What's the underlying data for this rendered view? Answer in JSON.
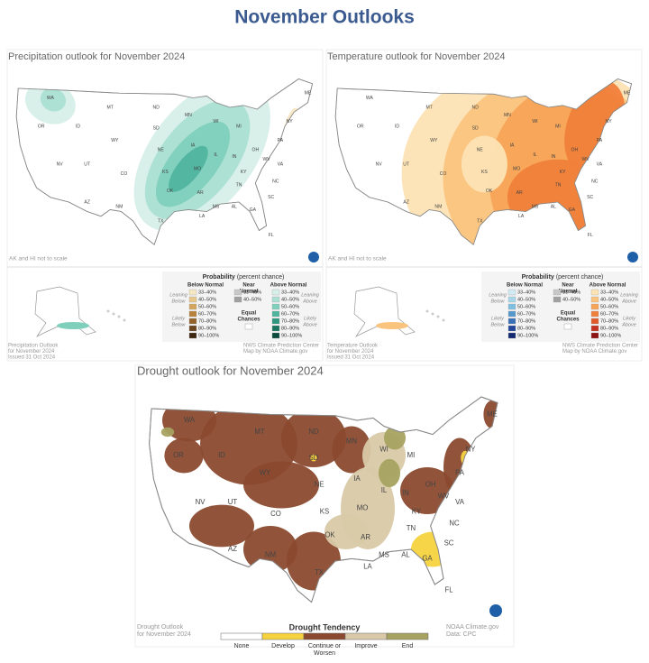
{
  "title": "November Outlooks",
  "state_labels": [
    "WA",
    "OR",
    "ID",
    "MT",
    "WY",
    "NV",
    "UT",
    "CO",
    "AZ",
    "NM",
    "ND",
    "SD",
    "NE",
    "KS",
    "OK",
    "TX",
    "MN",
    "IA",
    "MO",
    "AR",
    "LA",
    "WI",
    "IL",
    "MI",
    "IN",
    "OH",
    "KY",
    "TN",
    "MS",
    "AL",
    "GA",
    "FL",
    "SC",
    "NC",
    "VA",
    "WV",
    "PA",
    "NY",
    "ME"
  ],
  "precipitation": {
    "title": "Precipitation outlook for November 2024",
    "scale_note": "AK and HI not to scale",
    "legend": {
      "title": "Probability",
      "subtitle": "(percent chance)",
      "below_header": "Below Normal",
      "near_header": [
        "Near",
        "Normal"
      ],
      "above_header": "Above Normal",
      "below_items": [
        "33–40%",
        "40–50%",
        "50–60%",
        "60–70%",
        "70–80%",
        "80–90%",
        "90–100%"
      ],
      "near_items": [
        "33–40%",
        "40–50%"
      ],
      "above_items": [
        "33–40%",
        "40–50%",
        "50–60%",
        "60–70%",
        "70–80%",
        "80–90%",
        "90–100%"
      ],
      "below_colors": [
        "#f5e6c4",
        "#e6c88e",
        "#d4a55e",
        "#b8813a",
        "#93612a",
        "#6b4420",
        "#3e2610"
      ],
      "near_colors": [
        "#c8c8c8",
        "#a0a0a0"
      ],
      "above_colors": [
        "#d6efe8",
        "#aadfd2",
        "#7fcfbd",
        "#4fb49e",
        "#2f9680",
        "#1a7560",
        "#0b4a3c"
      ],
      "leaning_below": [
        "Leaning",
        "Below"
      ],
      "likely_below": [
        "Likely",
        "Below"
      ],
      "leaning_above": [
        "Leaning",
        "Above"
      ],
      "likely_above": [
        "Likely",
        "Above"
      ],
      "equal": [
        "Equal",
        "Chances"
      ]
    },
    "source_left": [
      "Precipitation Outlook",
      "for November 2024",
      "Issued 31 Oct 2024"
    ],
    "source_right": [
      "NWS Climate Prediction Center",
      "Map by NOAA Climate.gov"
    ]
  },
  "temperature": {
    "title": "Temperature outlook for November 2024",
    "scale_note": "AK and HI not to scale",
    "legend": {
      "title": "Probability",
      "subtitle": "(percent chance)",
      "below_header": "Below Normal",
      "near_header": [
        "Near",
        "Normal"
      ],
      "above_header": "Above Normal",
      "below_items": [
        "33–40%",
        "40–50%",
        "50–60%",
        "60–70%",
        "70–80%",
        "80–90%",
        "90–100%"
      ],
      "near_items": [
        "33–40%",
        "40–50%"
      ],
      "above_items": [
        "33–40%",
        "40–50%",
        "50–60%",
        "60–70%",
        "70–80%",
        "80–90%",
        "90–100%"
      ],
      "below_colors": [
        "#d2eaf3",
        "#a9d7ea",
        "#7fbfe0",
        "#5598cc",
        "#3970b5",
        "#24469a",
        "#142a70"
      ],
      "near_colors": [
        "#c8c8c8",
        "#a0a0a0"
      ],
      "above_colors": [
        "#fde3b4",
        "#fbc47e",
        "#f7a457",
        "#f07f3a",
        "#e05a2a",
        "#c43322",
        "#8e1414"
      ],
      "leaning_below": [
        "Leaning",
        "Below"
      ],
      "likely_below": [
        "Likely",
        "Below"
      ],
      "leaning_above": [
        "Leaning",
        "Above"
      ],
      "likely_above": [
        "Likely",
        "Above"
      ],
      "equal": [
        "Equal",
        "Chances"
      ]
    },
    "source_left": [
      "Temperature Outlook",
      "for November 2024",
      "Issued 31 Oct 2024"
    ],
    "source_right": [
      "NWS Climate Prediction Center",
      "Map by NOAA Climate.gov"
    ]
  },
  "drought": {
    "title": "Drought outlook for November 2024",
    "legend_title": "Drought Tendency",
    "items": [
      {
        "label": [
          "None"
        ],
        "color": "#ffffff"
      },
      {
        "label": [
          "Develop"
        ],
        "color": "#f5d33f"
      },
      {
        "label": [
          "Continue or",
          "Worsen"
        ],
        "color": "#8b4a2f"
      },
      {
        "label": [
          "Improve"
        ],
        "color": "#d9c9a8"
      },
      {
        "label": [
          "End"
        ],
        "color": "#a7a260"
      }
    ],
    "source_left": [
      "Drought Outlook",
      "for November 2024"
    ],
    "source_right": [
      "NOAA Climate.gov",
      "Data: CPC"
    ]
  }
}
